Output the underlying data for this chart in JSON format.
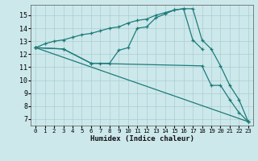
{
  "background_color": "#cce8eb",
  "grid_color": "#aacdd1",
  "line_color": "#1e7b7b",
  "xlabel": "Humidex (Indice chaleur)",
  "xlim": [
    -0.5,
    23.5
  ],
  "ylim": [
    6.5,
    15.8
  ],
  "xticks": [
    0,
    1,
    2,
    3,
    4,
    5,
    6,
    7,
    8,
    9,
    10,
    11,
    12,
    13,
    14,
    15,
    16,
    17,
    18,
    19,
    20,
    21,
    22,
    23
  ],
  "yticks": [
    7,
    8,
    9,
    10,
    11,
    12,
    13,
    14,
    15
  ],
  "lines": [
    {
      "x": [
        0,
        1,
        2,
        3,
        4,
        5,
        6,
        7,
        8,
        9,
        10,
        11,
        12,
        13,
        14,
        15,
        16,
        17,
        18
      ],
      "y": [
        12.5,
        12.8,
        13.0,
        13.1,
        13.3,
        13.5,
        13.6,
        13.8,
        14.0,
        14.1,
        14.4,
        14.6,
        14.7,
        15.0,
        15.2,
        15.4,
        15.5,
        13.1,
        12.4
      ]
    },
    {
      "x": [
        0,
        3,
        6,
        7,
        8,
        9,
        10,
        11,
        12,
        13,
        14,
        15,
        16,
        17,
        18,
        19,
        20,
        21,
        22,
        23
      ],
      "y": [
        12.5,
        12.4,
        11.3,
        11.3,
        11.3,
        12.3,
        12.5,
        14.0,
        14.1,
        14.8,
        15.1,
        15.4,
        15.5,
        15.5,
        13.1,
        12.4,
        11.1,
        9.6,
        8.5,
        6.8
      ]
    },
    {
      "x": [
        0,
        3,
        6,
        18,
        19,
        20,
        21,
        22,
        23
      ],
      "y": [
        12.5,
        12.4,
        11.3,
        11.1,
        9.6,
        9.6,
        8.5,
        7.5,
        6.8
      ]
    },
    {
      "x": [
        0,
        23
      ],
      "y": [
        12.5,
        6.8
      ]
    }
  ]
}
